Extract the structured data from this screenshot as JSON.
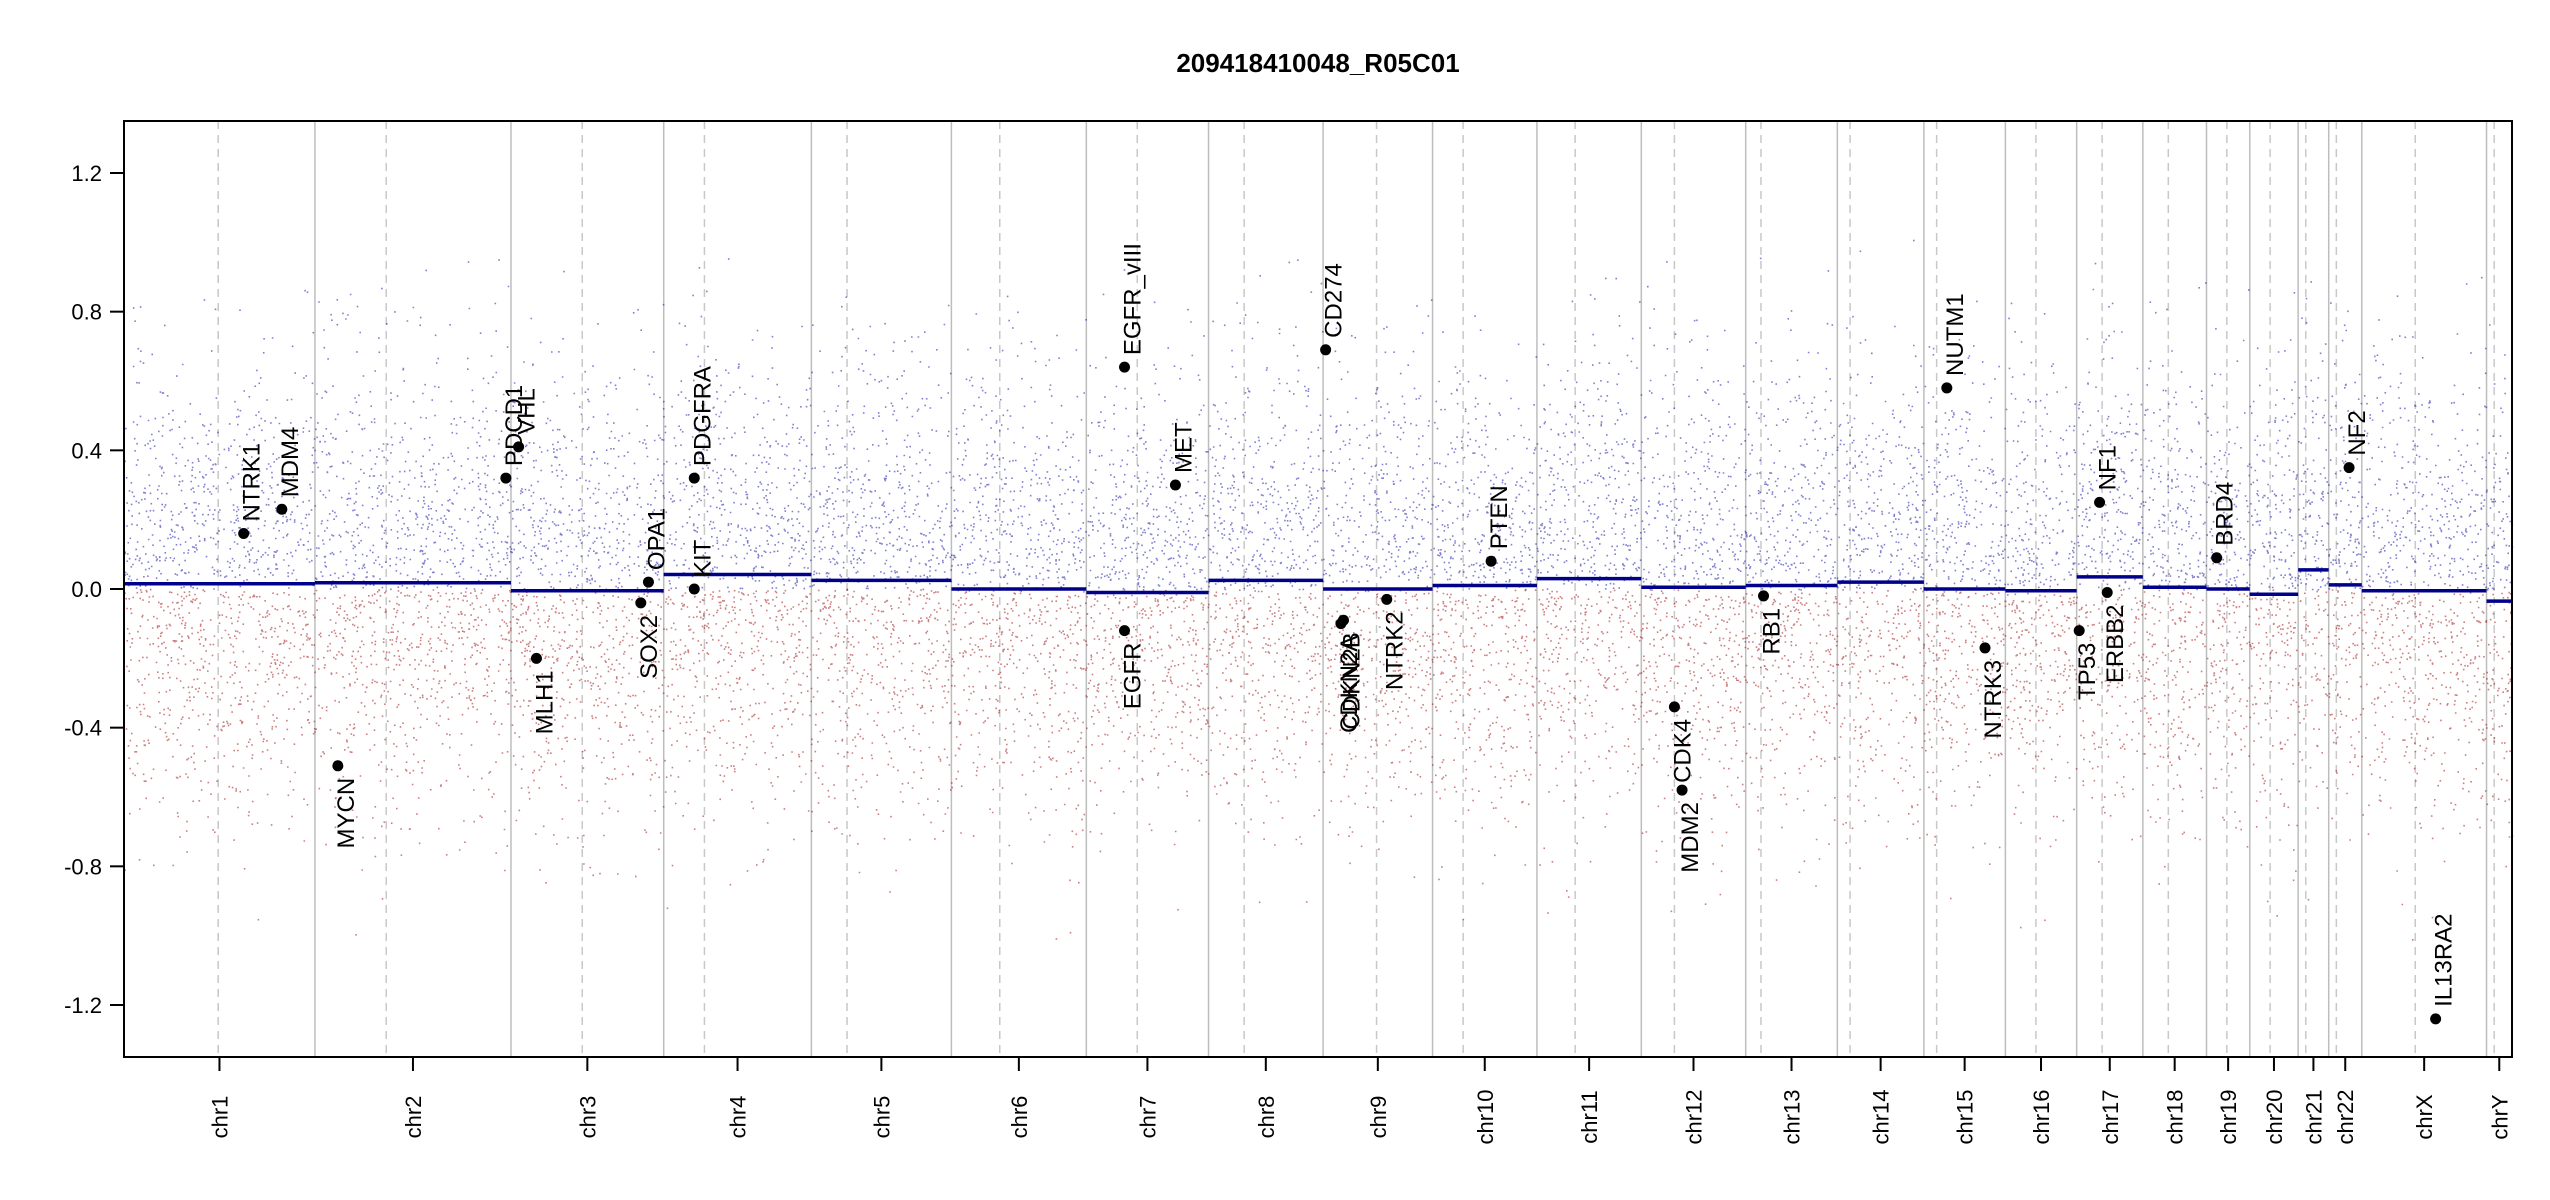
{
  "chart_data": {
    "type": "scatter",
    "title": "209418410048_R05C01",
    "xlabel": "",
    "ylabel": "",
    "ylim": [
      -1.35,
      1.35
    ],
    "y_ticks": [
      "1.2",
      "0.8",
      "0.4",
      "0.0",
      "-0.4",
      "-0.8",
      "-1.2"
    ],
    "y_tick_values": [
      1.2,
      0.8,
      0.4,
      0.0,
      -0.4,
      -0.8,
      -1.2
    ],
    "grid": false,
    "legend": "none",
    "colors": {
      "gain": "#1a1aa8",
      "loss": "#a01818",
      "segment": "#00008b",
      "point": "#000000",
      "divider": "#bdbdbd",
      "centromere": "#c8c8c8"
    },
    "chromosomes": [
      {
        "name": "chr1",
        "start": 0.0,
        "end": 7.5,
        "centromere": 3.7,
        "segment": 0.015
      },
      {
        "name": "chr2",
        "start": 7.5,
        "end": 15.2,
        "centromere": 10.3,
        "segment": 0.018
      },
      {
        "name": "chr3",
        "start": 15.2,
        "end": 21.2,
        "centromere": 18.0,
        "segment": -0.005
      },
      {
        "name": "chr4",
        "start": 21.2,
        "end": 27.0,
        "centromere": 22.8,
        "segment": 0.042
      },
      {
        "name": "chr5",
        "start": 27.0,
        "end": 32.5,
        "centromere": 28.4,
        "segment": 0.025
      },
      {
        "name": "chr6",
        "start": 32.5,
        "end": 37.8,
        "centromere": 34.4,
        "segment": 0.0
      },
      {
        "name": "chr7",
        "start": 37.8,
        "end": 42.6,
        "centromere": 39.8,
        "segment": -0.01
      },
      {
        "name": "chr8",
        "start": 42.6,
        "end": 47.1,
        "centromere": 44.0,
        "segment": 0.025
      },
      {
        "name": "chr9",
        "start": 47.1,
        "end": 51.4,
        "centromere": 49.2,
        "segment": 0.0
      },
      {
        "name": "chr10",
        "start": 51.4,
        "end": 55.5,
        "centromere": 52.6,
        "segment": 0.01
      },
      {
        "name": "chr11",
        "start": 55.5,
        "end": 59.6,
        "centromere": 57.0,
        "segment": 0.03
      },
      {
        "name": "chr12",
        "start": 59.6,
        "end": 63.7,
        "centromere": 60.9,
        "segment": 0.005
      },
      {
        "name": "chr13",
        "start": 63.7,
        "end": 67.3,
        "centromere": 64.3,
        "segment": 0.01
      },
      {
        "name": "chr14",
        "start": 67.3,
        "end": 70.7,
        "centromere": 67.8,
        "segment": 0.02
      },
      {
        "name": "chr15",
        "start": 70.7,
        "end": 73.9,
        "centromere": 71.2,
        "segment": 0.0
      },
      {
        "name": "chr16",
        "start": 73.9,
        "end": 76.7,
        "centromere": 75.1,
        "segment": -0.005
      },
      {
        "name": "chr17",
        "start": 76.7,
        "end": 79.3,
        "centromere": 77.7,
        "segment": 0.035
      },
      {
        "name": "chr18",
        "start": 79.3,
        "end": 81.8,
        "centromere": 80.3,
        "segment": 0.005
      },
      {
        "name": "chr19",
        "start": 81.8,
        "end": 83.5,
        "centromere": 82.6,
        "segment": 0.0
      },
      {
        "name": "chr20",
        "start": 83.5,
        "end": 85.4,
        "centromere": 84.3,
        "segment": -0.015
      },
      {
        "name": "chr21",
        "start": 85.4,
        "end": 86.6,
        "centromere": 85.7,
        "segment": 0.055
      },
      {
        "name": "chr22",
        "start": 86.6,
        "end": 87.9,
        "centromere": 86.9,
        "segment": 0.012
      },
      {
        "name": "chrX",
        "start": 87.9,
        "end": 92.8,
        "centromere": 90.0,
        "segment": -0.005
      },
      {
        "name": "chrY",
        "start": 92.8,
        "end": 93.8,
        "centromere": 93.1,
        "segment": -0.035
      }
    ],
    "x_range": [
      0,
      93.8
    ],
    "genes": [
      {
        "label": "NTRK1",
        "x": 4.7,
        "y": 0.16,
        "side": "up"
      },
      {
        "label": "MDM4",
        "x": 6.2,
        "y": 0.23,
        "side": "up"
      },
      {
        "label": "MYCN",
        "x": 8.4,
        "y": -0.51,
        "side": "down"
      },
      {
        "label": "PDCD1",
        "x": 15.0,
        "y": 0.32,
        "side": "up"
      },
      {
        "label": "VHL",
        "x": 15.5,
        "y": 0.41,
        "side": "up"
      },
      {
        "label": "MLH1",
        "x": 16.2,
        "y": -0.2,
        "side": "down"
      },
      {
        "label": "SOX2",
        "x": 20.3,
        "y": -0.04,
        "side": "down"
      },
      {
        "label": "OPA1",
        "x": 20.6,
        "y": 0.02,
        "side": "up"
      },
      {
        "label": "KIT",
        "x": 22.4,
        "y": 0.0,
        "side": "up"
      },
      {
        "label": "PDGFRA",
        "x": 22.4,
        "y": 0.32,
        "side": "up"
      },
      {
        "label": "EGFR_vIII",
        "x": 39.3,
        "y": 0.64,
        "side": "up"
      },
      {
        "label": "EGFR",
        "x": 39.3,
        "y": -0.12,
        "side": "down"
      },
      {
        "label": "MET",
        "x": 41.3,
        "y": 0.3,
        "side": "up"
      },
      {
        "label": "CD274",
        "x": 47.2,
        "y": 0.69,
        "side": "up"
      },
      {
        "label": "CDKN2A",
        "x": 47.8,
        "y": -0.1,
        "side": "down"
      },
      {
        "label": "CDKN2B",
        "x": 47.9,
        "y": -0.09,
        "side": "down"
      },
      {
        "label": "NTRK2",
        "x": 49.6,
        "y": -0.03,
        "side": "down"
      },
      {
        "label": "PTEN",
        "x": 53.7,
        "y": 0.08,
        "side": "up"
      },
      {
        "label": "CDK4",
        "x": 60.9,
        "y": -0.34,
        "side": "down"
      },
      {
        "label": "MDM2",
        "x": 61.2,
        "y": -0.58,
        "side": "down"
      },
      {
        "label": "RB1",
        "x": 64.4,
        "y": -0.02,
        "side": "down"
      },
      {
        "label": "NUTM1",
        "x": 71.6,
        "y": 0.58,
        "side": "up"
      },
      {
        "label": "NTRK3",
        "x": 73.1,
        "y": -0.17,
        "side": "down"
      },
      {
        "label": "TP53",
        "x": 76.8,
        "y": -0.12,
        "side": "down"
      },
      {
        "label": "NF1",
        "x": 77.6,
        "y": 0.25,
        "side": "up"
      },
      {
        "label": "ERBB2",
        "x": 77.9,
        "y": -0.01,
        "side": "down"
      },
      {
        "label": "BRD4",
        "x": 82.2,
        "y": 0.09,
        "side": "up"
      },
      {
        "label": "NF2",
        "x": 87.4,
        "y": 0.35,
        "side": "up"
      },
      {
        "label": "IL13RA2",
        "x": 90.8,
        "y": -1.24,
        "side": "up"
      }
    ]
  }
}
